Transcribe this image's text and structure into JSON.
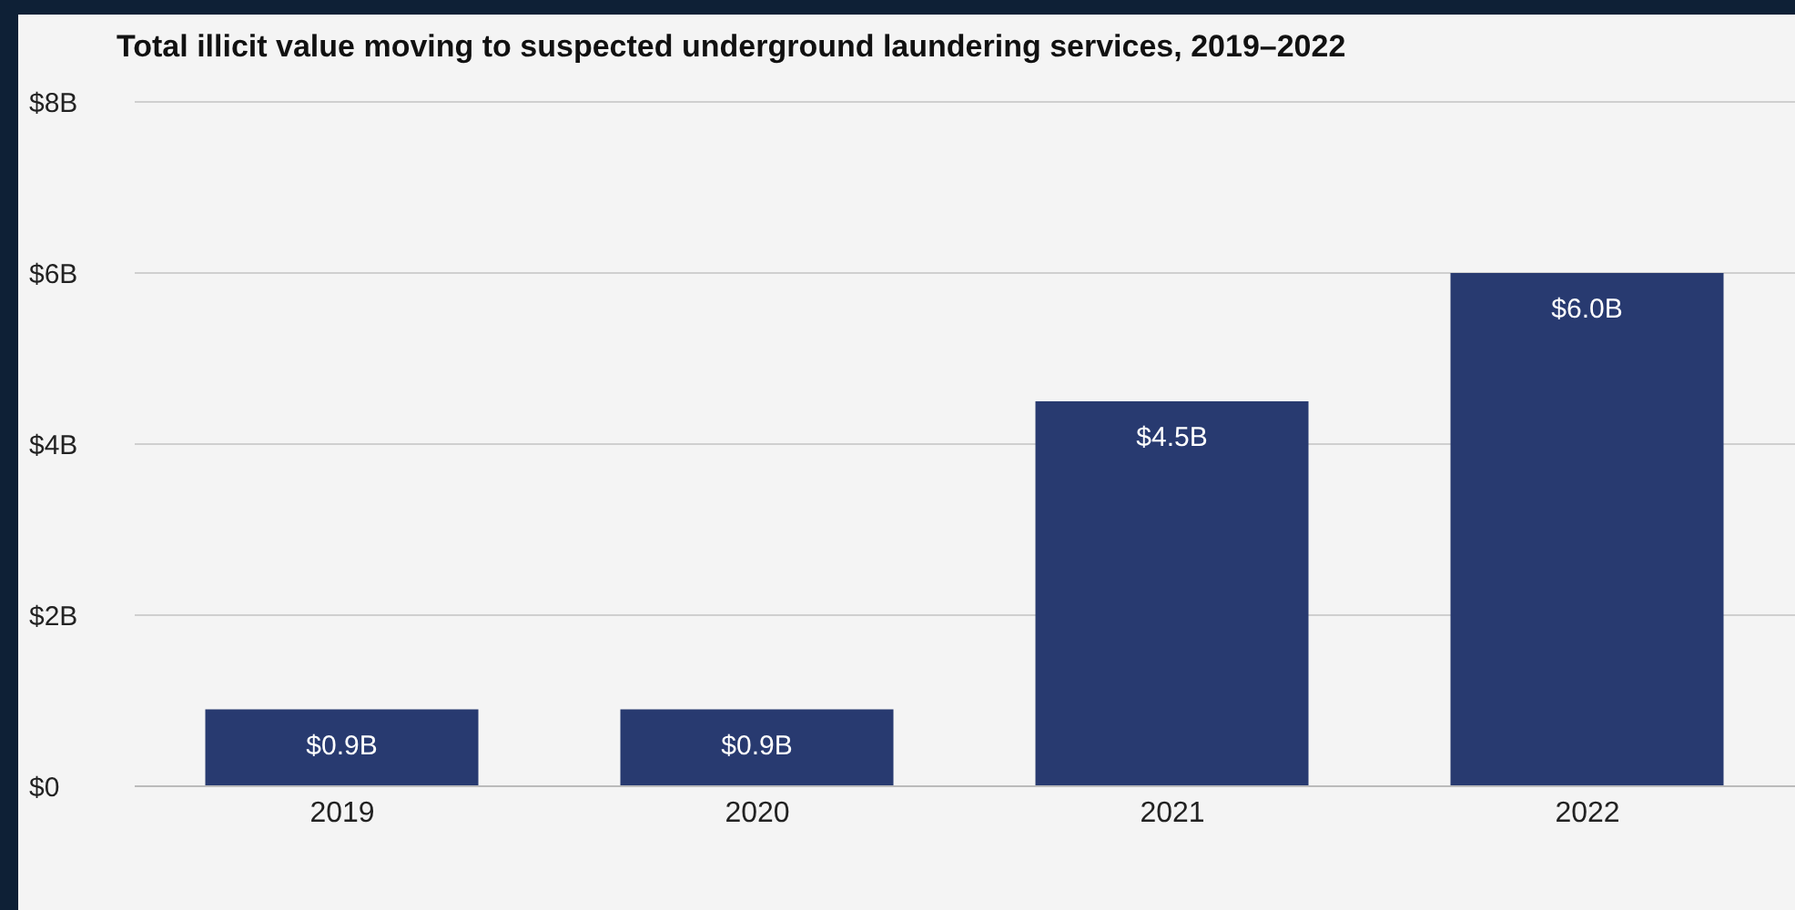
{
  "chart_data": {
    "type": "bar",
    "title": "Total illicit value moving to suspected underground laundering services, 2019–2022",
    "categories": [
      "2019",
      "2020",
      "2021",
      "2022"
    ],
    "values": [
      0.9,
      0.9,
      4.5,
      6.0
    ],
    "value_labels": [
      "$0.9B",
      "$0.9B",
      "$4.5B",
      "$6.0B"
    ],
    "color": "#283a70",
    "ylim": [
      0,
      8
    ],
    "yticks": [
      {
        "value": 0,
        "label": "$0"
      },
      {
        "value": 2,
        "label": "$2B"
      },
      {
        "value": 4,
        "label": "$4B"
      },
      {
        "value": 6,
        "label": "$6B"
      },
      {
        "value": 8,
        "label": "$8B"
      }
    ],
    "grid": "y",
    "legend": false
  }
}
